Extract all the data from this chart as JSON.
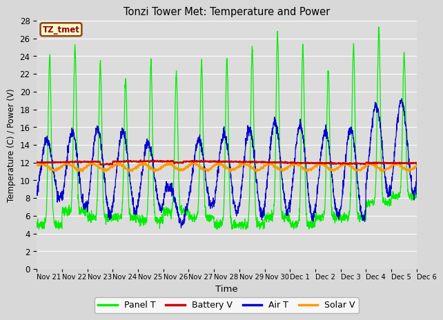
{
  "title": "Tonzi Tower Met: Temperature and Power",
  "xlabel": "Time",
  "ylabel": "Temperature (C) / Power (V)",
  "ylim": [
    0,
    28
  ],
  "yticks": [
    0,
    2,
    4,
    6,
    8,
    10,
    12,
    14,
    16,
    18,
    20,
    22,
    24,
    26,
    28
  ],
  "fig_bg_color": "#d8d8d8",
  "plot_bg_color": "#dcdcdc",
  "grid_color": "white",
  "annotation_text": "TZ_tmet",
  "annotation_color": "#8b0000",
  "annotation_bg": "#fffacd",
  "annotation_border": "#8b4513",
  "line_colors": {
    "panel_t": "#00ee00",
    "battery_v": "#cc0000",
    "air_t": "#0000cc",
    "solar_v": "#ff9900"
  },
  "legend_labels": [
    "Panel T",
    "Battery V",
    "Air T",
    "Solar V"
  ],
  "tick_labels": [
    "Nov 21",
    "Nov 22",
    "Nov 23",
    "Nov 24",
    "Nov 25",
    "Nov 26",
    "Nov 27",
    "Nov 28",
    "Nov 29",
    "Nov 30",
    "Dec 1",
    "Dec 2",
    "Dec 3",
    "Dec 4",
    "Dec 5",
    "Dec 6"
  ],
  "n_days": 16,
  "samples_per_day": 144
}
